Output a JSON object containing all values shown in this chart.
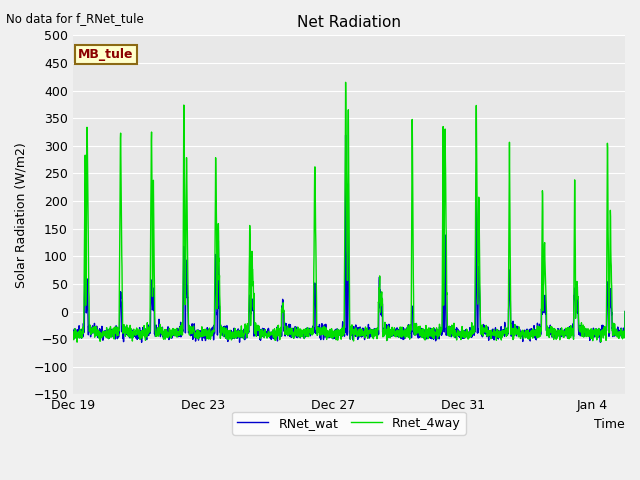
{
  "title": "Net Radiation",
  "no_data_text": "No data for f_RNet_tule",
  "ylabel": "Solar Radiation (W/m2)",
  "xlabel": "Time",
  "ylim": [
    -150,
    500
  ],
  "yticks": [
    -150,
    -100,
    -50,
    0,
    50,
    100,
    150,
    200,
    250,
    300,
    350,
    400,
    450,
    500
  ],
  "xtick_labels": [
    "Dec 19",
    "Dec 23",
    "Dec 27",
    "Dec 31",
    "Jan 4"
  ],
  "xtick_positions": [
    0,
    4,
    8,
    12,
    16
  ],
  "line1_color": "#0000cc",
  "line2_color": "#00dd00",
  "legend_label1": "RNet_wat",
  "legend_label2": "Rnet_4way",
  "mb_tule_label": "MB_tule",
  "bg_color": "#f0f0f0",
  "plot_bg_color": "#e8e8e8",
  "line_width": 1.0,
  "days": 17,
  "figwidth": 6.4,
  "figheight": 4.8,
  "dpi": 100
}
